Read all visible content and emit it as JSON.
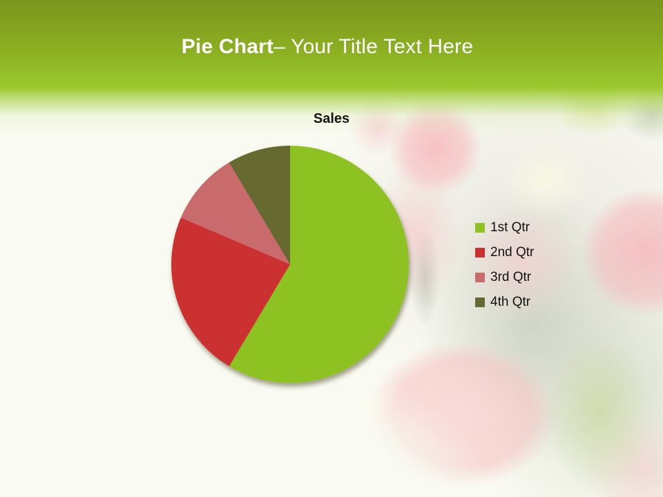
{
  "slide": {
    "title": {
      "bold": "Pie Chart",
      "rest": "– Your Title Text Here"
    },
    "colors": {
      "band_top": "#7C961F",
      "band_bottom": "#9BC92E",
      "title_text": "#FFFFFF",
      "background": "#F9FAF1"
    },
    "backdrop": "faded pink roses photo"
  },
  "chart_data": {
    "type": "pie",
    "title": "Sales",
    "categories": [
      "1st Qtr",
      "2nd Qtr",
      "3rd Qtr",
      "4th Qtr"
    ],
    "values": [
      8.2,
      3.2,
      1.4,
      1.2
    ],
    "percentages": [
      58.6,
      22.9,
      10.0,
      8.6
    ],
    "colors": [
      "#8EC122",
      "#CC3131",
      "#C96B6C",
      "#666A30"
    ],
    "start_angle_deg": 0,
    "clockwise": true,
    "legend_position": "right",
    "data_labels": false
  }
}
